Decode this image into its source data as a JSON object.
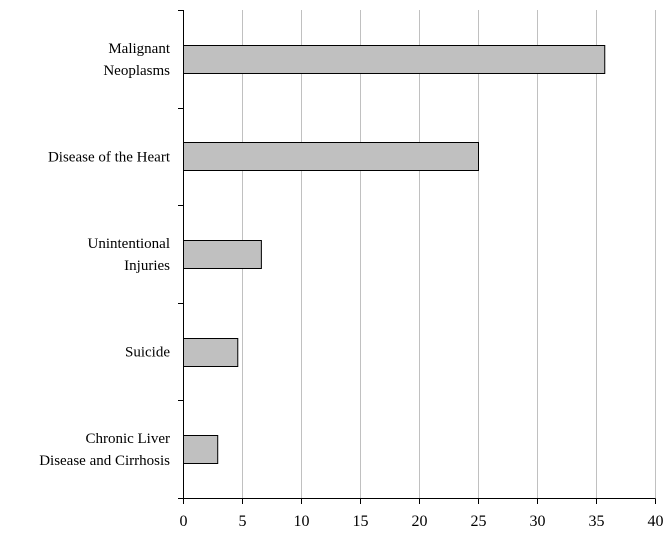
{
  "chart_data": {
    "type": "bar",
    "orientation": "horizontal",
    "categories": [
      [
        "Malignant",
        "Neoplasms"
      ],
      [
        "Disease of the Heart"
      ],
      [
        "Unintentional",
        "Injuries"
      ],
      [
        "Suicide"
      ],
      [
        "Chronic Liver",
        "Disease and Cirrhosis"
      ]
    ],
    "values": [
      35.7,
      25.0,
      6.6,
      4.6,
      2.9
    ],
    "xlim": [
      0,
      40
    ],
    "xticks": [
      0,
      5,
      10,
      15,
      20,
      25,
      30,
      35,
      40
    ],
    "title": "",
    "xlabel": "",
    "ylabel": "",
    "grid": "vertical",
    "colors": {
      "bar_fill": "#c0c0c0",
      "bar_stroke": "#000000",
      "grid": "#c0c0c0",
      "axis": "#000000"
    }
  }
}
